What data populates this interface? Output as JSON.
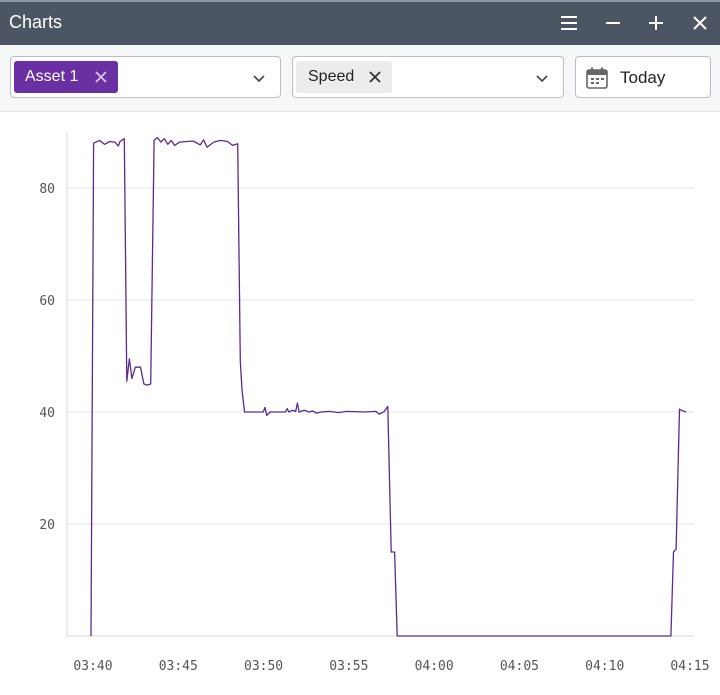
{
  "window": {
    "title": "Charts",
    "buttons": [
      "menu-icon",
      "minimize-icon",
      "maximize-icon",
      "close-icon"
    ]
  },
  "toolbar": {
    "asset_select": {
      "chip_label": "Asset 1",
      "chip_color": "#6a2fa3"
    },
    "metric_select": {
      "chip_label": "Speed"
    },
    "date_button": {
      "label": "Today",
      "icon": "calendar-icon"
    }
  },
  "colors": {
    "titlebar": "#4b5662",
    "accent": "#6a2fa3",
    "line": "#5b2a8f",
    "grid": "#e2e4e7"
  },
  "chart_data": {
    "type": "line",
    "series": [
      {
        "values": [
          [
            0.0,
            0
          ],
          [
            0.15,
            88
          ],
          [
            0.5,
            88.5
          ],
          [
            0.8,
            87.8
          ],
          [
            1.1,
            88.3
          ],
          [
            1.4,
            88.2
          ],
          [
            1.6,
            87.5
          ],
          [
            1.7,
            88.3
          ],
          [
            1.95,
            88.8
          ],
          [
            2.1,
            45.5
          ],
          [
            2.25,
            49.5
          ],
          [
            2.4,
            46
          ],
          [
            2.6,
            48
          ],
          [
            2.9,
            48
          ],
          [
            3.1,
            45
          ],
          [
            3.3,
            44.8
          ],
          [
            3.5,
            45
          ],
          [
            3.7,
            88.5
          ],
          [
            3.9,
            89
          ],
          [
            4.1,
            88.2
          ],
          [
            4.3,
            88.8
          ],
          [
            4.5,
            87.8
          ],
          [
            4.7,
            88.5
          ],
          [
            4.9,
            87.6
          ],
          [
            5.2,
            88.2
          ],
          [
            5.6,
            88.3
          ],
          [
            6.0,
            88.4
          ],
          [
            6.4,
            87.7
          ],
          [
            6.6,
            88.6
          ],
          [
            6.8,
            87.3
          ],
          [
            7.2,
            88.2
          ],
          [
            7.6,
            88.5
          ],
          [
            8.0,
            88.3
          ],
          [
            8.3,
            87.6
          ],
          [
            8.6,
            87.9
          ],
          [
            8.75,
            49
          ],
          [
            8.85,
            44
          ],
          [
            9.0,
            40
          ],
          [
            10.1,
            40
          ],
          [
            10.2,
            40.8
          ],
          [
            10.3,
            39.4
          ],
          [
            10.5,
            40
          ],
          [
            11.4,
            40
          ],
          [
            11.5,
            40.6
          ],
          [
            11.6,
            40
          ],
          [
            11.8,
            40.3
          ],
          [
            12.0,
            40.1
          ],
          [
            12.1,
            41.6
          ],
          [
            12.2,
            40
          ],
          [
            12.5,
            40.3
          ],
          [
            12.8,
            40
          ],
          [
            13.0,
            40.2
          ],
          [
            13.2,
            39.8
          ],
          [
            13.5,
            40
          ],
          [
            14.0,
            40.1
          ],
          [
            14.5,
            39.9
          ],
          [
            15.0,
            40.1
          ],
          [
            16.0,
            40
          ],
          [
            16.7,
            40.1
          ],
          [
            16.9,
            39.6
          ],
          [
            17.2,
            40.1
          ],
          [
            17.4,
            41
          ],
          [
            17.6,
            15
          ],
          [
            17.8,
            15
          ],
          [
            17.95,
            0
          ],
          [
            34.0,
            0
          ],
          [
            34.15,
            15
          ],
          [
            34.3,
            15.5
          ],
          [
            34.5,
            40.5
          ],
          [
            34.7,
            40.2
          ],
          [
            34.9,
            40
          ]
        ]
      }
    ],
    "x_ticks": [
      "03:40",
      "03:45",
      "03:50",
      "03:55",
      "04:00",
      "04:05",
      "04:10",
      "04:15"
    ],
    "x_range_minutes": [
      0,
      35
    ],
    "y_ticks": [
      20,
      40,
      60,
      80
    ],
    "ylim": [
      0,
      90
    ],
    "grid": true
  }
}
